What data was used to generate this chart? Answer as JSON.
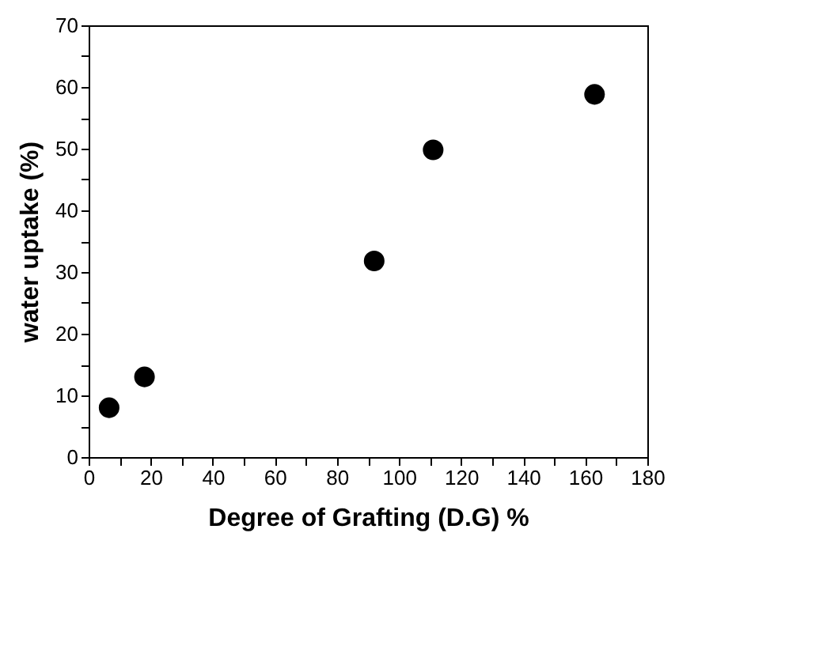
{
  "chart_data": {
    "type": "scatter",
    "xlabel": "Degree of Grafting (D.G) %",
    "ylabel": "water uptake (%)",
    "x": [
      6.6,
      18,
      92,
      111,
      163
    ],
    "values": [
      8,
      13,
      31.8,
      49.8,
      58.8
    ],
    "color": "#000000",
    "marker": "circle",
    "grid": false,
    "xlim": [
      0,
      180
    ],
    "ylim": [
      0,
      70
    ],
    "xticks": [
      0,
      {
        "value": 10,
        "label": null
      },
      20,
      {
        "value": 30,
        "label": null
      },
      40,
      {
        "value": 50,
        "label": null
      },
      60,
      {
        "value": 70,
        "label": null
      },
      80,
      {
        "value": 90,
        "label": null
      },
      100,
      {
        "value": 110,
        "label": null
      },
      120,
      {
        "value": 130,
        "label": null
      },
      140,
      {
        "value": 150,
        "label": null
      },
      160,
      {
        "value": 170,
        "label": null
      },
      180
    ],
    "yticks": [
      0,
      {
        "value": 5,
        "label": null
      },
      10,
      {
        "value": 15,
        "label": null
      },
      20,
      {
        "value": 25,
        "label": null
      },
      30,
      {
        "value": 35,
        "label": null
      },
      40,
      {
        "value": 45,
        "label": null
      },
      50,
      {
        "value": 55,
        "label": null
      },
      60,
      {
        "value": 65,
        "label": null
      },
      70
    ]
  }
}
